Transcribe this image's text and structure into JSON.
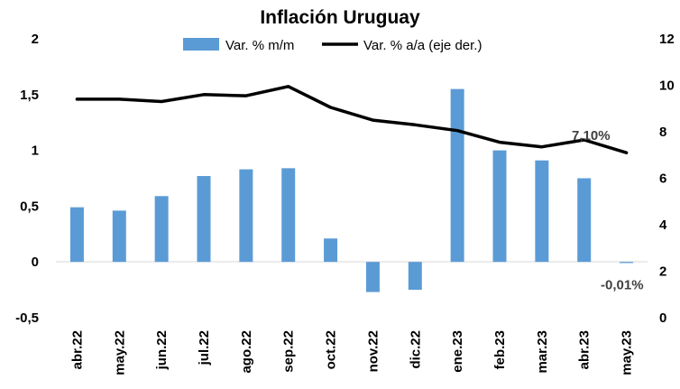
{
  "chart_data": {
    "type": "bar+line",
    "title": "Inflación Uruguay",
    "categories": [
      "abr.22",
      "may.22",
      "jun.22",
      "jul.22",
      "ago.22",
      "sep.22",
      "oct.22",
      "nov.22",
      "dic.22",
      "ene.23",
      "feb.23",
      "mar.23",
      "abr.23",
      "may.23"
    ],
    "series": [
      {
        "name": "Var. % m/m",
        "type": "bar",
        "axis": "left",
        "color": "#5b9bd5",
        "values": [
          0.49,
          0.46,
          0.59,
          0.77,
          0.83,
          0.84,
          0.21,
          -0.27,
          -0.25,
          1.55,
          1.0,
          0.91,
          0.75,
          -0.01
        ]
      },
      {
        "name": "Var. % a/a (eje der.)",
        "type": "line",
        "axis": "right",
        "color": "#000000",
        "values": [
          9.4,
          9.4,
          9.3,
          9.6,
          9.55,
          9.95,
          9.05,
          8.5,
          8.3,
          8.05,
          7.55,
          7.35,
          7.65,
          7.1
        ]
      }
    ],
    "y_left": {
      "min": -0.5,
      "max": 2,
      "ticks": [
        "-0,5",
        "0",
        "0,5",
        "1",
        "1,5",
        "2"
      ],
      "tick_values": [
        -0.5,
        0,
        0.5,
        1,
        1.5,
        2
      ]
    },
    "y_right": {
      "min": 0,
      "max": 12,
      "ticks": [
        "0",
        "2",
        "4",
        "6",
        "8",
        "10",
        "12"
      ],
      "tick_values": [
        0,
        2,
        4,
        6,
        8,
        10,
        12
      ]
    },
    "annotations": [
      {
        "text": "7,10%",
        "series": "Var. % a/a (eje der.)",
        "index": 13
      },
      {
        "text": "-0,01%",
        "series": "Var. % m/m",
        "index": 13
      }
    ],
    "legend_position": "top",
    "grid": false
  }
}
